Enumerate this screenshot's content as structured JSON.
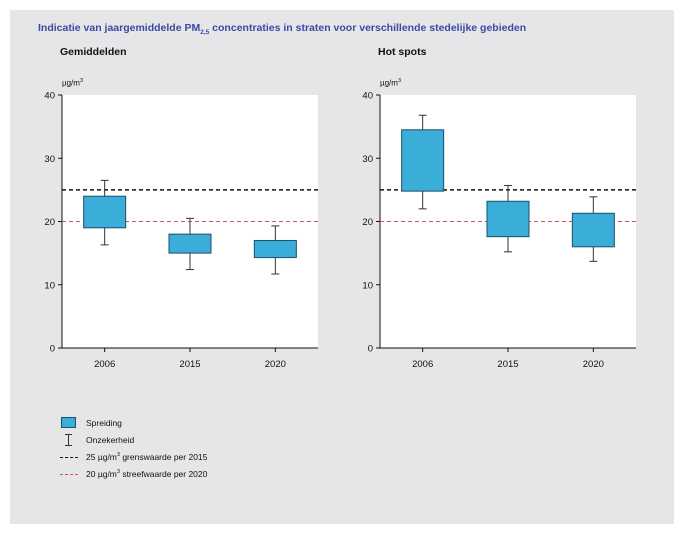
{
  "title_main": "Indicatie van jaargemiddelde PM",
  "title_sub": "2,5",
  "title_rest": " concentraties in straten voor verschillende stedelijke gebieden",
  "unit": "µg/m",
  "unit_sup": "3",
  "colors": {
    "box": "#3aaed8",
    "box_border": "#1d4f6a",
    "limit_line": "#111111",
    "target_line": "#e05050",
    "title": "#3a4aa0"
  },
  "legend": {
    "spreiding": "Spreiding",
    "onzekerheid": "Onzekerheid",
    "grenswaarde_pre": "25 µg/m",
    "grenswaarde_sup": "3",
    "grenswaarde_post": " grenswaarde per 2015",
    "streefwaarde_pre": "20 µg/m",
    "streefwaarde_sup": "3",
    "streefwaarde_post": " streefwaarde per 2020"
  },
  "chart_data": [
    {
      "type": "box",
      "title": "Gemiddelden",
      "ylabel": "µg/m3",
      "ylim": [
        0,
        40
      ],
      "yticks": [
        0,
        10,
        20,
        30,
        40
      ],
      "categories": [
        "2006",
        "2015",
        "2020"
      ],
      "box_low": [
        19,
        15,
        14.3
      ],
      "box_high": [
        24,
        18,
        17
      ],
      "whisker_low": [
        16.3,
        12.4,
        11.7
      ],
      "whisker_high": [
        26.5,
        20.5,
        19.3
      ],
      "reference_lines": [
        {
          "value": 25,
          "label": "25 µg/m3 grenswaarde per 2015",
          "style": "dashed-black"
        },
        {
          "value": 20,
          "label": "20 µg/m3 streefwaarde per 2020",
          "style": "dashed-red"
        }
      ]
    },
    {
      "type": "box",
      "title": "Hot spots",
      "ylabel": "µg/m3",
      "ylim": [
        0,
        40
      ],
      "yticks": [
        0,
        10,
        20,
        30,
        40
      ],
      "categories": [
        "2006",
        "2015",
        "2020"
      ],
      "box_low": [
        24.8,
        17.6,
        16
      ],
      "box_high": [
        34.5,
        23.2,
        21.3
      ],
      "whisker_low": [
        22,
        15.2,
        13.7
      ],
      "whisker_high": [
        36.8,
        25.7,
        23.9
      ],
      "reference_lines": [
        {
          "value": 25,
          "label": "25 µg/m3 grenswaarde per 2015",
          "style": "dashed-black"
        },
        {
          "value": 20,
          "label": "20 µg/m3 streefwaarde per 2020",
          "style": "dashed-red"
        }
      ]
    }
  ]
}
